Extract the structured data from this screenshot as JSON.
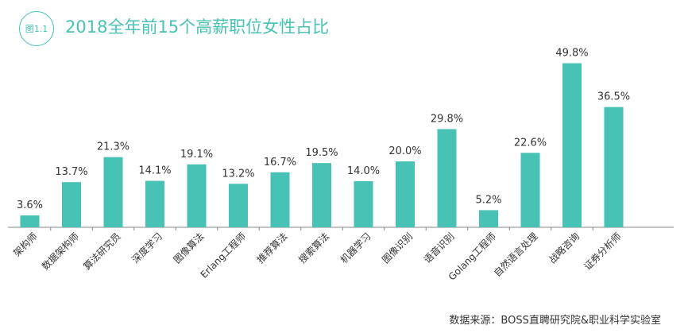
{
  "figure_label": "图1.1",
  "source": "数据来源：BOSS直聘研究院&职业科学实验室",
  "colors": {
    "accent": "#47c2b5",
    "bar": "#47c2b5",
    "text": "#333333",
    "axis": "#888888"
  },
  "chart_data": {
    "type": "bar",
    "title": "2018全年前15个高薪职位女性占比",
    "xlabel": "",
    "ylabel": "",
    "ylim": [
      0,
      55
    ],
    "grid": false,
    "categories": [
      "架构师",
      "数据架构师",
      "算法研究员",
      "深度学习",
      "图像算法",
      "Erlang工程师",
      "推荐算法",
      "搜索算法",
      "机器学习",
      "图像识别",
      "语音识别",
      "Golang工程师",
      "自然语言处理",
      "战略咨询",
      "证券分析师"
    ],
    "values": [
      3.6,
      13.7,
      21.3,
      14.1,
      19.1,
      13.2,
      16.7,
      19.5,
      14.0,
      20.0,
      29.8,
      5.2,
      22.6,
      49.8,
      36.5
    ],
    "value_labels": [
      "3.6%",
      "13.7%",
      "21.3%",
      "14.1%",
      "19.1%",
      "13.2%",
      "16.7%",
      "19.5%",
      "14.0%",
      "20.0%",
      "29.8%",
      "5.2%",
      "22.6%",
      "49.8%",
      "36.5%"
    ]
  }
}
